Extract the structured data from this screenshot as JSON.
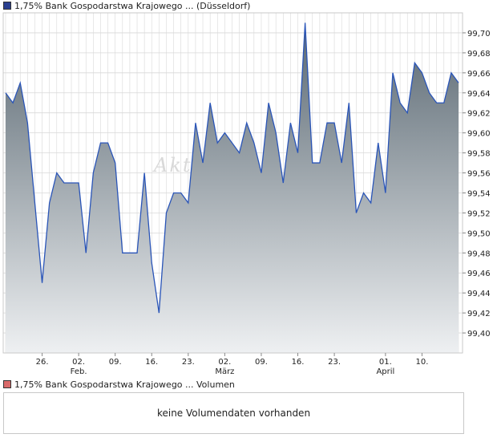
{
  "legend": {
    "price_label": "1,75% Bank Gospodarstwa Krajowego ... (Düsseldorf)",
    "volume_label": "1,75% Bank Gospodarstwa Krajowego ... Volumen"
  },
  "volume": {
    "empty_message": "keine Volumendaten vorhanden"
  },
  "watermark": "Akt",
  "colors": {
    "line": "#2a55b8",
    "fill_top": "#5a6872",
    "fill_bottom": "#eef0f2",
    "grid": "#d8d8d8",
    "frame": "#c8c8c8"
  },
  "chart_data": {
    "type": "area",
    "title": "1,75% Bank Gospodarstwa Krajowego ... (Düsseldorf)",
    "xlabel": "",
    "ylabel": "",
    "ylim": [
      99.38,
      99.72
    ],
    "yticks": [
      99.4,
      99.42,
      99.44,
      99.46,
      99.48,
      99.5,
      99.52,
      99.54,
      99.56,
      99.58,
      99.6,
      99.62,
      99.64,
      99.66,
      99.68,
      99.7
    ],
    "ytick_labels": [
      "99,40",
      "99,42",
      "99,44",
      "99,46",
      "99,48",
      "99,50",
      "99,52",
      "99,54",
      "99,56",
      "99,58",
      "99,60",
      "99,62",
      "99,64",
      "99,66",
      "99,68",
      "99,70"
    ],
    "xticks": [
      {
        "index": 5,
        "label": "26."
      },
      {
        "index": 10,
        "label": "02.",
        "sublabel": "Feb."
      },
      {
        "index": 15,
        "label": "09."
      },
      {
        "index": 20,
        "label": "16."
      },
      {
        "index": 25,
        "label": "23."
      },
      {
        "index": 30,
        "label": "02.",
        "sublabel": "März"
      },
      {
        "index": 35,
        "label": "09."
      },
      {
        "index": 40,
        "label": "16."
      },
      {
        "index": 45,
        "label": "23."
      },
      {
        "index": 52,
        "label": "01.",
        "sublabel": "April"
      },
      {
        "index": 57,
        "label": "10."
      }
    ],
    "series": [
      {
        "name": "1,75% Bank Gospodarstwa Krajowego ... (Düsseldorf)",
        "values": [
          99.64,
          99.63,
          99.65,
          99.61,
          99.53,
          99.45,
          99.53,
          99.56,
          99.55,
          99.55,
          99.55,
          99.48,
          99.56,
          99.59,
          99.59,
          99.57,
          99.48,
          99.48,
          99.48,
          99.56,
          99.47,
          99.42,
          99.52,
          99.54,
          99.54,
          99.53,
          99.61,
          99.57,
          99.63,
          99.59,
          99.6,
          99.59,
          99.58,
          99.61,
          99.59,
          99.56,
          99.63,
          99.6,
          99.55,
          99.61,
          99.58,
          99.71,
          99.57,
          99.57,
          99.61,
          99.61,
          99.57,
          99.63,
          99.52,
          99.54,
          99.53,
          99.59,
          99.54,
          99.66,
          99.63,
          99.62,
          99.67,
          99.66,
          99.64,
          99.63,
          99.63,
          99.66,
          99.65
        ]
      }
    ]
  }
}
